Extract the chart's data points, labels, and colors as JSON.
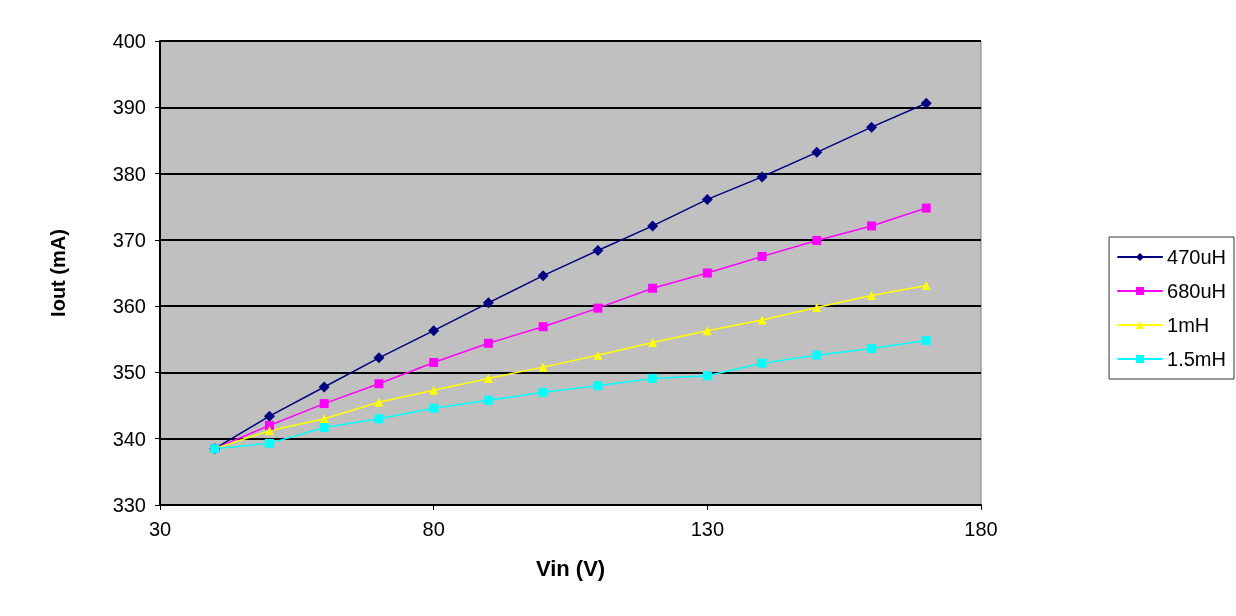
{
  "chart_data": {
    "type": "line",
    "xlabel": "Vin (V)",
    "ylabel": "Iout (mA)",
    "x": [
      40,
      50,
      60,
      70,
      80,
      90,
      100,
      110,
      120,
      130,
      140,
      150,
      160,
      170
    ],
    "series": [
      {
        "name": "470uH",
        "color": "#000080",
        "marker": "diamond",
        "values": [
          338.5,
          343.4,
          347.8,
          352.2,
          356.3,
          360.5,
          364.6,
          368.4,
          372.1,
          376.1,
          379.5,
          383.2,
          387.0,
          390.6
        ]
      },
      {
        "name": "680uH",
        "color": "#ff00ff",
        "marker": "square",
        "values": [
          338.5,
          342.0,
          345.3,
          348.3,
          351.5,
          354.4,
          356.9,
          359.7,
          362.7,
          365.0,
          367.5,
          369.9,
          372.1,
          374.8
        ]
      },
      {
        "name": "1mH",
        "color": "#ffff00",
        "marker": "triangle",
        "values": [
          338.5,
          341.2,
          343.0,
          345.5,
          347.3,
          349.1,
          350.8,
          352.6,
          354.5,
          356.3,
          357.9,
          359.8,
          361.6,
          363.1
        ]
      },
      {
        "name": "1.5mH",
        "color": "#00ffff",
        "marker": "square",
        "values": [
          338.5,
          339.3,
          341.7,
          343.0,
          344.6,
          345.8,
          347.0,
          348.0,
          349.1,
          349.5,
          351.4,
          352.6,
          353.6,
          354.8
        ]
      }
    ],
    "xlim": [
      30,
      180
    ],
    "xticks": [
      30,
      80,
      130,
      180
    ],
    "ylim": [
      330,
      400
    ],
    "yticks": [
      330,
      340,
      350,
      360,
      370,
      380,
      390,
      400
    ],
    "grid": "y",
    "legend": "right",
    "line_style": "solid"
  }
}
